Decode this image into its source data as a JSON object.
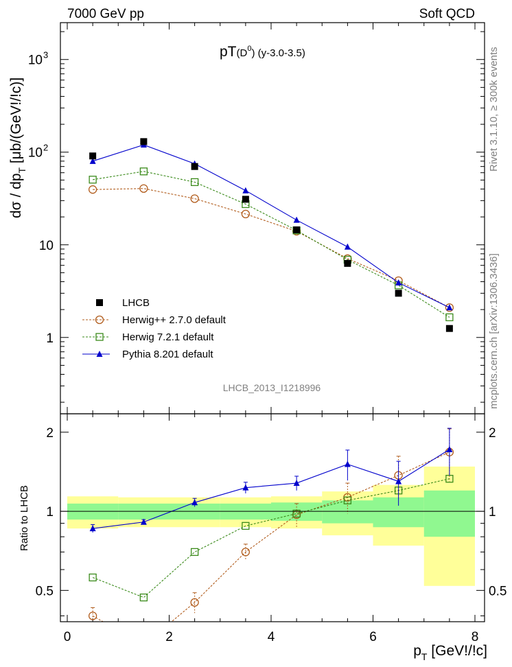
{
  "header": {
    "left": "7000 GeV pp",
    "right": "Soft QCD"
  },
  "side": {
    "rivet": "Rivet 3.1.10, ≥ 300k events",
    "mcplots": "mcplots.cern.ch [arXiv:1306.3436]"
  },
  "chart_data": {
    "type": "scatter",
    "title": "pT(D⁰) (y-3.0-3.5)",
    "title_main": "pT",
    "title_paren": "(D",
    "title_sup": "0",
    "title_rest": ") (y-3.0-3.5)",
    "ylabel": "dσ / dp_T [μb/(GeV!/!c)]",
    "ylabel_main": "dσ / dp",
    "ylabel_sub": "T",
    "ylabel_rest": " [μb/(GeV!/!c)]",
    "xlabel_main": "p",
    "xlabel_sub": "T",
    "xlabel_rest": " [GeV!/!c]",
    "ratio_ylabel": "Ratio to LHCB",
    "analysis_label": "LHCB_2013_I1218996",
    "xlim": [
      0,
      8
    ],
    "ylim": [
      0.15,
      2500
    ],
    "yscale": "log",
    "ratio_ylim": [
      0.38,
      2.35
    ],
    "x": [
      0.5,
      1.5,
      2.5,
      3.5,
      4.5,
      5.5,
      6.5,
      7.5
    ],
    "x_edges": [
      0,
      1,
      2,
      3,
      4,
      5,
      6,
      7,
      8
    ],
    "x_ticks": [
      "0",
      "2",
      "4",
      "6",
      "8"
    ],
    "y_ticks": [
      "1",
      "10",
      "10^2",
      "10^3"
    ],
    "ratio_ticks": [
      "0.5",
      "1",
      "2"
    ],
    "legend_position": "lower-left",
    "series": [
      {
        "name": "LHCB",
        "color": "#000000",
        "marker": "filled-square",
        "values": [
          91,
          130,
          70,
          31,
          14.5,
          6.3,
          3.0,
          1.25
        ]
      },
      {
        "name": "Herwig++ 2.7.0 default",
        "color": "#b15c1c",
        "marker": "open-circle",
        "dashed": true,
        "values": [
          39.5,
          40.5,
          31.5,
          21.5,
          14.0,
          7.1,
          4.1,
          2.1
        ]
      },
      {
        "name": "Herwig 7.2.1 default",
        "color": "#3a8a1a",
        "marker": "open-square",
        "dashed": true,
        "values": [
          50.5,
          62,
          47.5,
          27.5,
          14.3,
          6.9,
          3.65,
          1.65
        ]
      },
      {
        "name": "Pythia 8.201 default",
        "color": "#0000cc",
        "marker": "filled-triangle",
        "dashed": false,
        "values": [
          80,
          120,
          75,
          38.5,
          18.5,
          9.5,
          3.9,
          2.1
        ]
      }
    ],
    "ratios": {
      "Herwig++ 2.7.0 default": {
        "values": [
          0.4,
          0.31,
          0.45,
          0.7,
          0.97,
          1.13,
          1.37,
          1.68
        ],
        "errors": [
          0.03,
          0.0,
          0.04,
          0.05,
          0.1,
          0.15,
          0.25,
          0.38
        ]
      },
      "Herwig 7.2.1 default": {
        "values": [
          0.56,
          0.47,
          0.7,
          0.88,
          0.98,
          1.1,
          1.2,
          1.33
        ],
        "errors": [
          0.0,
          0.0,
          0.0,
          0.0,
          0.0,
          0.0,
          0.0,
          0.0
        ]
      },
      "Pythia 8.201 default": {
        "values": [
          0.86,
          0.91,
          1.08,
          1.23,
          1.28,
          1.51,
          1.3,
          1.72
        ],
        "errors": [
          0.03,
          0.02,
          0.04,
          0.06,
          0.08,
          0.2,
          0.25,
          0.35
        ]
      }
    },
    "bands": {
      "green_half": [
        0.07,
        0.07,
        0.07,
        0.07,
        0.08,
        0.1,
        0.13,
        0.2
      ],
      "yellow_half": [
        0.14,
        0.13,
        0.13,
        0.13,
        0.14,
        0.19,
        0.26,
        0.48
      ],
      "green_color": "#90f890",
      "yellow_color": "#ffff99"
    }
  }
}
